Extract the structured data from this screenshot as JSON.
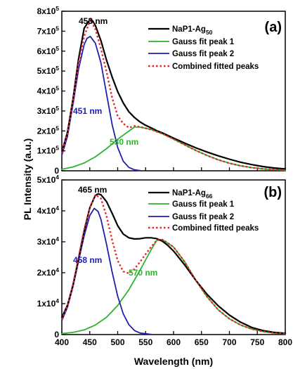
{
  "x_axis": {
    "label": "Wavelength (nm)",
    "ticks": [
      "400",
      "450",
      "500",
      "550",
      "600",
      "650",
      "700",
      "750",
      "800"
    ]
  },
  "y_axis_label": "PL Intensity (a.u.)",
  "chart_data": [
    {
      "type": "line",
      "panel_label": "(a)",
      "ylabel": "PL Intensity (a.u.)",
      "xlabel": "",
      "xlim": [
        400,
        800
      ],
      "ylim": [
        0,
        800000
      ],
      "y_ticks": [
        {
          "value": 0,
          "base": "0",
          "exp": ""
        },
        {
          "value": 100000,
          "base": "1x10",
          "exp": "5"
        },
        {
          "value": 200000,
          "base": "2x10",
          "exp": "5"
        },
        {
          "value": 300000,
          "base": "3x10",
          "exp": "5"
        },
        {
          "value": 400000,
          "base": "4x10",
          "exp": "5"
        },
        {
          "value": 500000,
          "base": "5x10",
          "exp": "5"
        },
        {
          "value": 600000,
          "base": "6x10",
          "exp": "5"
        },
        {
          "value": 700000,
          "base": "7x10",
          "exp": "5"
        },
        {
          "value": 800000,
          "base": "8x10",
          "exp": "5"
        }
      ],
      "legend": [
        {
          "base": "NaP1-Ag",
          "sub": "50"
        },
        {
          "base": "Gauss fit peak 1",
          "sub": ""
        },
        {
          "base": "Gauss fit peak 2",
          "sub": ""
        },
        {
          "base": "Combined fitted peaks",
          "sub": ""
        }
      ],
      "colors": {
        "data": "#000000",
        "peak1": "#2db52d",
        "peak2": "#1f1fb0",
        "combined": "#e8262c"
      },
      "series": [
        {
          "role": "data",
          "x": [
            400,
            410,
            420,
            430,
            440,
            450,
            455,
            460,
            470,
            480,
            490,
            500,
            510,
            520,
            530,
            540,
            550,
            560,
            570,
            580,
            590,
            600,
            620,
            640,
            660,
            680,
            700,
            720,
            740,
            760,
            780,
            800
          ],
          "y": [
            93000,
            194000,
            360000,
            561000,
            715000,
            757000,
            752000,
            729000,
            652000,
            555000,
            470000,
            397000,
            340000,
            296000,
            267000,
            245000,
            228000,
            215000,
            201000,
            190000,
            177000,
            164000,
            139000,
            115000,
            94000,
            75000,
            58000,
            43000,
            31000,
            21000,
            14000,
            9000
          ]
        },
        {
          "role": "peak1",
          "x": [
            400,
            420,
            440,
            460,
            480,
            500,
            520,
            530,
            540,
            560,
            580,
            600,
            620,
            640,
            660,
            680,
            700,
            720,
            740,
            760,
            780,
            800
          ],
          "y": [
            8000,
            19000,
            39000,
            70000,
            111000,
            158000,
            199000,
            220000,
            219000,
            207000,
            186000,
            159000,
            130000,
            102000,
            77000,
            55000,
            38000,
            25000,
            16000,
            9500,
            5500,
            3000
          ]
        },
        {
          "role": "peak2",
          "x": [
            400,
            410,
            420,
            430,
            440,
            445,
            451,
            460,
            470,
            480,
            490,
            500,
            510,
            520,
            530,
            540
          ],
          "y": [
            78000,
            172000,
            334000,
            510000,
            633000,
            664000,
            674000,
            640000,
            541000,
            386000,
            232000,
            117000,
            48000,
            17000,
            5000,
            1000
          ]
        },
        {
          "role": "combined",
          "x": [
            400,
            410,
            420,
            430,
            440,
            445,
            451,
            460,
            470,
            480,
            490,
            500,
            510,
            520,
            530,
            540,
            560,
            580,
            600,
            620,
            640,
            660,
            680,
            700,
            720,
            740,
            760,
            780,
            800
          ],
          "y": [
            88000,
            186000,
            350000,
            540000,
            675000,
            712000,
            758000,
            710000,
            611000,
            497000,
            366000,
            275000,
            237000,
            216000,
            225000,
            220000,
            207000,
            186000,
            159000,
            130000,
            102000,
            77000,
            55000,
            38000,
            25000,
            16000,
            9500,
            5500,
            3000
          ]
        }
      ],
      "annotations": [
        {
          "text": "453 nm",
          "role": "data"
        },
        {
          "text": "451 nm",
          "role": "peak2"
        },
        {
          "text": "530 nm",
          "role": "peak1"
        }
      ]
    },
    {
      "type": "line",
      "panel_label": "(b)",
      "ylabel": "PL Intensity (a.u.)",
      "xlabel": "Wavelength (nm)",
      "xlim": [
        400,
        800
      ],
      "ylim": [
        0,
        50000
      ],
      "y_ticks": [
        {
          "value": 0,
          "base": "0",
          "exp": ""
        },
        {
          "value": 10000,
          "base": "1x10",
          "exp": "4"
        },
        {
          "value": 20000,
          "base": "2x10",
          "exp": "4"
        },
        {
          "value": 30000,
          "base": "3x10",
          "exp": "4"
        },
        {
          "value": 40000,
          "base": "4x10",
          "exp": "4"
        },
        {
          "value": 50000,
          "base": "5x10",
          "exp": "4"
        }
      ],
      "legend": [
        {
          "base": "NaP1-Ag",
          "sub": "66"
        },
        {
          "base": "Gauss fit peak 1",
          "sub": ""
        },
        {
          "base": "Gauss fit peak 2",
          "sub": ""
        },
        {
          "base": "Combined fitted peaks",
          "sub": ""
        }
      ],
      "colors": {
        "data": "#000000",
        "peak1": "#2db52d",
        "peak2": "#1f1fb0",
        "combined": "#e8262c"
      },
      "series": [
        {
          "role": "data",
          "x": [
            400,
            410,
            420,
            430,
            440,
            450,
            460,
            465,
            470,
            480,
            490,
            500,
            510,
            520,
            530,
            540,
            550,
            560,
            570,
            580,
            590,
            600,
            620,
            640,
            660,
            680,
            700,
            720,
            740,
            760,
            780,
            800
          ],
          "y": [
            5500,
            9500,
            16000,
            24500,
            33500,
            41000,
            45000,
            45500,
            45200,
            43000,
            39200,
            35200,
            32500,
            31300,
            30900,
            31000,
            31300,
            31300,
            31000,
            30200,
            28800,
            27000,
            22500,
            17500,
            13000,
            9300,
            6300,
            4000,
            2300,
            1300,
            700,
            400
          ]
        },
        {
          "role": "peak1",
          "x": [
            400,
            420,
            440,
            460,
            480,
            500,
            520,
            540,
            560,
            570,
            580,
            600,
            620,
            640,
            660,
            680,
            700,
            720,
            740,
            760,
            780,
            800
          ],
          "y": [
            300,
            700,
            1500,
            3100,
            5600,
            9400,
            14500,
            20800,
            27500,
            30500,
            30700,
            28300,
            23500,
            17500,
            12200,
            8000,
            5100,
            3100,
            1800,
            1000,
            500,
            250
          ]
        },
        {
          "role": "peak2",
          "x": [
            400,
            410,
            420,
            430,
            440,
            450,
            458,
            465,
            470,
            480,
            490,
            500,
            510,
            520,
            530,
            540,
            560
          ],
          "y": [
            4500,
            8800,
            15500,
            23800,
            32000,
            38500,
            40800,
            39800,
            37200,
            29200,
            20200,
            12400,
            6700,
            3200,
            1300,
            500,
            50
          ]
        },
        {
          "role": "combined",
          "x": [
            400,
            410,
            420,
            430,
            440,
            450,
            460,
            470,
            480,
            490,
            500,
            510,
            520,
            530,
            540,
            550,
            560,
            570,
            580,
            590,
            600,
            620,
            640,
            660,
            680,
            700,
            720,
            740,
            760,
            780,
            800
          ],
          "y": [
            4900,
            9200,
            16200,
            25000,
            34000,
            41000,
            45200,
            44000,
            38300,
            30500,
            23900,
            20400,
            19800,
            21200,
            23500,
            26000,
            28400,
            30500,
            30700,
            29600,
            28300,
            23500,
            17500,
            12200,
            8000,
            5100,
            3100,
            1800,
            1000,
            500,
            250
          ]
        }
      ],
      "annotations": [
        {
          "text": "465 nm",
          "role": "data"
        },
        {
          "text": "458 nm",
          "role": "peak2"
        },
        {
          "text": "570 nm",
          "role": "peak1"
        }
      ]
    }
  ]
}
